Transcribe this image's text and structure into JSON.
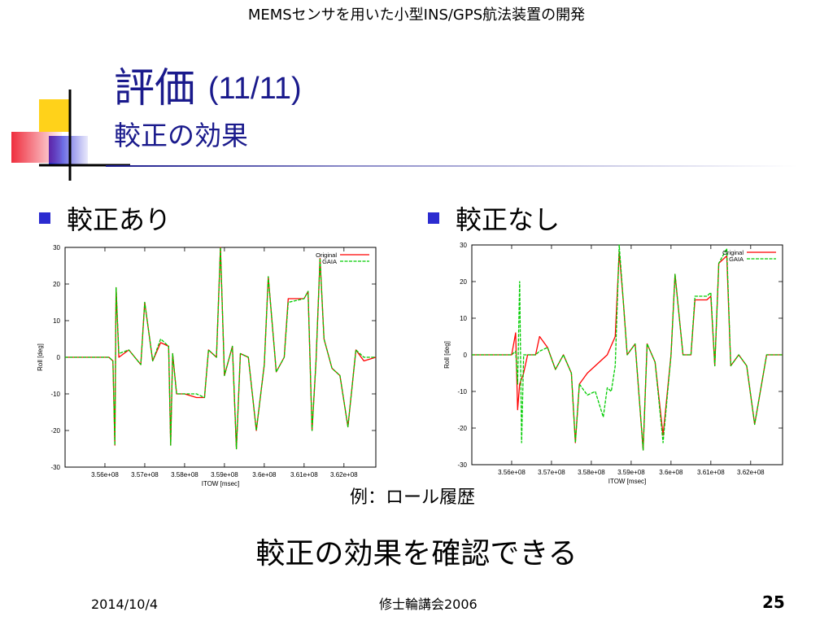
{
  "header": {
    "text": "MEMSセンサを用いた小型INS/GPS航法装置の開発"
  },
  "title": {
    "main": "評価",
    "number": "(11/11)",
    "sub": "較正の効果"
  },
  "bullets": [
    {
      "label": "較正あり"
    },
    {
      "label": "較正なし"
    }
  ],
  "chart_data": [
    {
      "type": "line",
      "title": "",
      "xlabel": "ITOW [msec]",
      "ylabel": "Roll [deg]",
      "xlim": [
        355000000,
        362800000
      ],
      "ylim": [
        -30,
        30
      ],
      "xticks": [
        356000000,
        357000000,
        358000000,
        359000000,
        360000000,
        361000000,
        362000000
      ],
      "xtick_labels": [
        "3.56e+08",
        "3.57e+08",
        "3.58e+08",
        "3.59e+08",
        "3.6e+08",
        "3.61e+08",
        "3.62e+08"
      ],
      "yticks": [
        -30,
        -20,
        -10,
        0,
        10,
        20,
        30
      ],
      "ytick_labels": [
        "-30",
        "-20",
        "-10",
        "0",
        "10",
        "20",
        "30"
      ],
      "legend_position": "top-right",
      "series": [
        {
          "name": "Original",
          "color": "#ff0000",
          "points": [
            [
              355000000,
              0
            ],
            [
              356100000,
              0
            ],
            [
              356200000,
              -1
            ],
            [
              356250000,
              -24
            ],
            [
              356280000,
              19
            ],
            [
              356350000,
              0
            ],
            [
              356600000,
              2
            ],
            [
              356900000,
              -2
            ],
            [
              357000000,
              15
            ],
            [
              357200000,
              -1
            ],
            [
              357400000,
              4
            ],
            [
              357600000,
              3
            ],
            [
              357650000,
              -24
            ],
            [
              357700000,
              1
            ],
            [
              357800000,
              -10
            ],
            [
              358000000,
              -10
            ],
            [
              358300000,
              -11
            ],
            [
              358500000,
              -11
            ],
            [
              358600000,
              2
            ],
            [
              358800000,
              0
            ],
            [
              358900000,
              30
            ],
            [
              359000000,
              -5
            ],
            [
              359200000,
              3
            ],
            [
              359300000,
              -25
            ],
            [
              359400000,
              1
            ],
            [
              359600000,
              0
            ],
            [
              359800000,
              -20
            ],
            [
              360000000,
              -2
            ],
            [
              360100000,
              22
            ],
            [
              360300000,
              -4
            ],
            [
              360500000,
              0
            ],
            [
              360600000,
              16
            ],
            [
              361000000,
              16
            ],
            [
              361100000,
              18
            ],
            [
              361200000,
              -20
            ],
            [
              361300000,
              -1
            ],
            [
              361400000,
              27
            ],
            [
              361500000,
              5
            ],
            [
              361700000,
              -3
            ],
            [
              361900000,
              -5
            ],
            [
              362100000,
              -19
            ],
            [
              362300000,
              2
            ],
            [
              362500000,
              -1
            ],
            [
              362800000,
              0
            ]
          ]
        },
        {
          "name": "GAIA",
          "color": "#00cc00",
          "points": [
            [
              355000000,
              0
            ],
            [
              356100000,
              0
            ],
            [
              356200000,
              -1
            ],
            [
              356250000,
              -24
            ],
            [
              356280000,
              19
            ],
            [
              356350000,
              1
            ],
            [
              356600000,
              2
            ],
            [
              356900000,
              -2
            ],
            [
              357000000,
              15
            ],
            [
              357200000,
              -1
            ],
            [
              357400000,
              5
            ],
            [
              357600000,
              3
            ],
            [
              357650000,
              -24
            ],
            [
              357700000,
              1
            ],
            [
              357800000,
              -10
            ],
            [
              358000000,
              -10
            ],
            [
              358300000,
              -10
            ],
            [
              358500000,
              -11
            ],
            [
              358600000,
              2
            ],
            [
              358800000,
              0
            ],
            [
              358900000,
              30
            ],
            [
              359000000,
              -5
            ],
            [
              359200000,
              3
            ],
            [
              359300000,
              -25
            ],
            [
              359400000,
              1
            ],
            [
              359600000,
              0
            ],
            [
              359800000,
              -20
            ],
            [
              360000000,
              -2
            ],
            [
              360100000,
              22
            ],
            [
              360300000,
              -4
            ],
            [
              360500000,
              0
            ],
            [
              360600000,
              15
            ],
            [
              361000000,
              16
            ],
            [
              361100000,
              18
            ],
            [
              361200000,
              -20
            ],
            [
              361300000,
              -1
            ],
            [
              361400000,
              27
            ],
            [
              361500000,
              5
            ],
            [
              361700000,
              -3
            ],
            [
              361900000,
              -5
            ],
            [
              362100000,
              -19
            ],
            [
              362300000,
              2
            ],
            [
              362500000,
              0
            ],
            [
              362800000,
              0
            ]
          ]
        }
      ]
    },
    {
      "type": "line",
      "title": "",
      "xlabel": "ITOW [msec]",
      "ylabel": "Roll [deg]",
      "xlim": [
        355000000,
        362800000
      ],
      "ylim": [
        -30,
        30
      ],
      "xticks": [
        356000000,
        357000000,
        358000000,
        359000000,
        360000000,
        361000000,
        362000000
      ],
      "xtick_labels": [
        "3.56e+08",
        "3.57e+08",
        "3.58e+08",
        "3.59e+08",
        "3.6e+08",
        "3.61e+08",
        "3.62e+08"
      ],
      "yticks": [
        -30,
        -20,
        -10,
        0,
        10,
        20,
        30
      ],
      "ytick_labels": [
        "-30",
        "-20",
        "-10",
        "0",
        "10",
        "20",
        "30"
      ],
      "legend_position": "top-right",
      "series": [
        {
          "name": "Original",
          "color": "#ff0000",
          "points": [
            [
              355000000,
              0
            ],
            [
              356000000,
              0
            ],
            [
              356100000,
              6
            ],
            [
              356150000,
              -15
            ],
            [
              356200000,
              -8
            ],
            [
              356300000,
              -5
            ],
            [
              356400000,
              0
            ],
            [
              356600000,
              0
            ],
            [
              356700000,
              5
            ],
            [
              356900000,
              2
            ],
            [
              357100000,
              -4
            ],
            [
              357300000,
              0
            ],
            [
              357500000,
              -5
            ],
            [
              357600000,
              -24
            ],
            [
              357700000,
              -8
            ],
            [
              357900000,
              -5
            ],
            [
              358100000,
              -3
            ],
            [
              358400000,
              0
            ],
            [
              358600000,
              5
            ],
            [
              358700000,
              28
            ],
            [
              358800000,
              15
            ],
            [
              358900000,
              0
            ],
            [
              359100000,
              3
            ],
            [
              359300000,
              -26
            ],
            [
              359400000,
              3
            ],
            [
              359600000,
              -2
            ],
            [
              359800000,
              -22
            ],
            [
              360000000,
              0
            ],
            [
              360100000,
              22
            ],
            [
              360300000,
              0
            ],
            [
              360500000,
              0
            ],
            [
              360600000,
              15
            ],
            [
              360900000,
              15
            ],
            [
              361000000,
              16
            ],
            [
              361100000,
              -3
            ],
            [
              361200000,
              25
            ],
            [
              361400000,
              27
            ],
            [
              361500000,
              -3
            ],
            [
              361700000,
              0
            ],
            [
              361900000,
              -3
            ],
            [
              362100000,
              -19
            ],
            [
              362400000,
              0
            ],
            [
              362800000,
              0
            ]
          ]
        },
        {
          "name": "GAIA",
          "color": "#00cc00",
          "points": [
            [
              355000000,
              0
            ],
            [
              356000000,
              0
            ],
            [
              356100000,
              1
            ],
            [
              356150000,
              -8
            ],
            [
              356200000,
              20
            ],
            [
              356250000,
              -24
            ],
            [
              356300000,
              0
            ],
            [
              356600000,
              0
            ],
            [
              356700000,
              1
            ],
            [
              356900000,
              2
            ],
            [
              357100000,
              -4
            ],
            [
              357300000,
              0
            ],
            [
              357500000,
              -5
            ],
            [
              357600000,
              -24
            ],
            [
              357700000,
              -8
            ],
            [
              357900000,
              -11
            ],
            [
              358100000,
              -10
            ],
            [
              358300000,
              -17
            ],
            [
              358400000,
              -9
            ],
            [
              358500000,
              -10
            ],
            [
              358600000,
              -3
            ],
            [
              358700000,
              30
            ],
            [
              358800000,
              15
            ],
            [
              358900000,
              0
            ],
            [
              359100000,
              3
            ],
            [
              359300000,
              -26
            ],
            [
              359400000,
              3
            ],
            [
              359600000,
              -2
            ],
            [
              359800000,
              -24
            ],
            [
              360000000,
              0
            ],
            [
              360100000,
              22
            ],
            [
              360300000,
              0
            ],
            [
              360500000,
              0
            ],
            [
              360600000,
              16
            ],
            [
              360900000,
              16
            ],
            [
              361000000,
              17
            ],
            [
              361100000,
              -3
            ],
            [
              361200000,
              25
            ],
            [
              361400000,
              29
            ],
            [
              361500000,
              -3
            ],
            [
              361700000,
              0
            ],
            [
              361900000,
              -3
            ],
            [
              362100000,
              -19
            ],
            [
              362400000,
              0
            ],
            [
              362800000,
              0
            ]
          ]
        }
      ]
    }
  ],
  "caption": "例：ロール履歴",
  "conclusion": "較正の効果を確認できる",
  "footer": {
    "date": "2014/10/4",
    "center": "修士輪講会2006",
    "page": "25"
  },
  "colors": {
    "title": "#1a1a8c",
    "bullet": "#2b2bd0",
    "deco_yellow": "#ffd21a",
    "deco_red": "#ee2233",
    "deco_blue": "#2626d6"
  }
}
